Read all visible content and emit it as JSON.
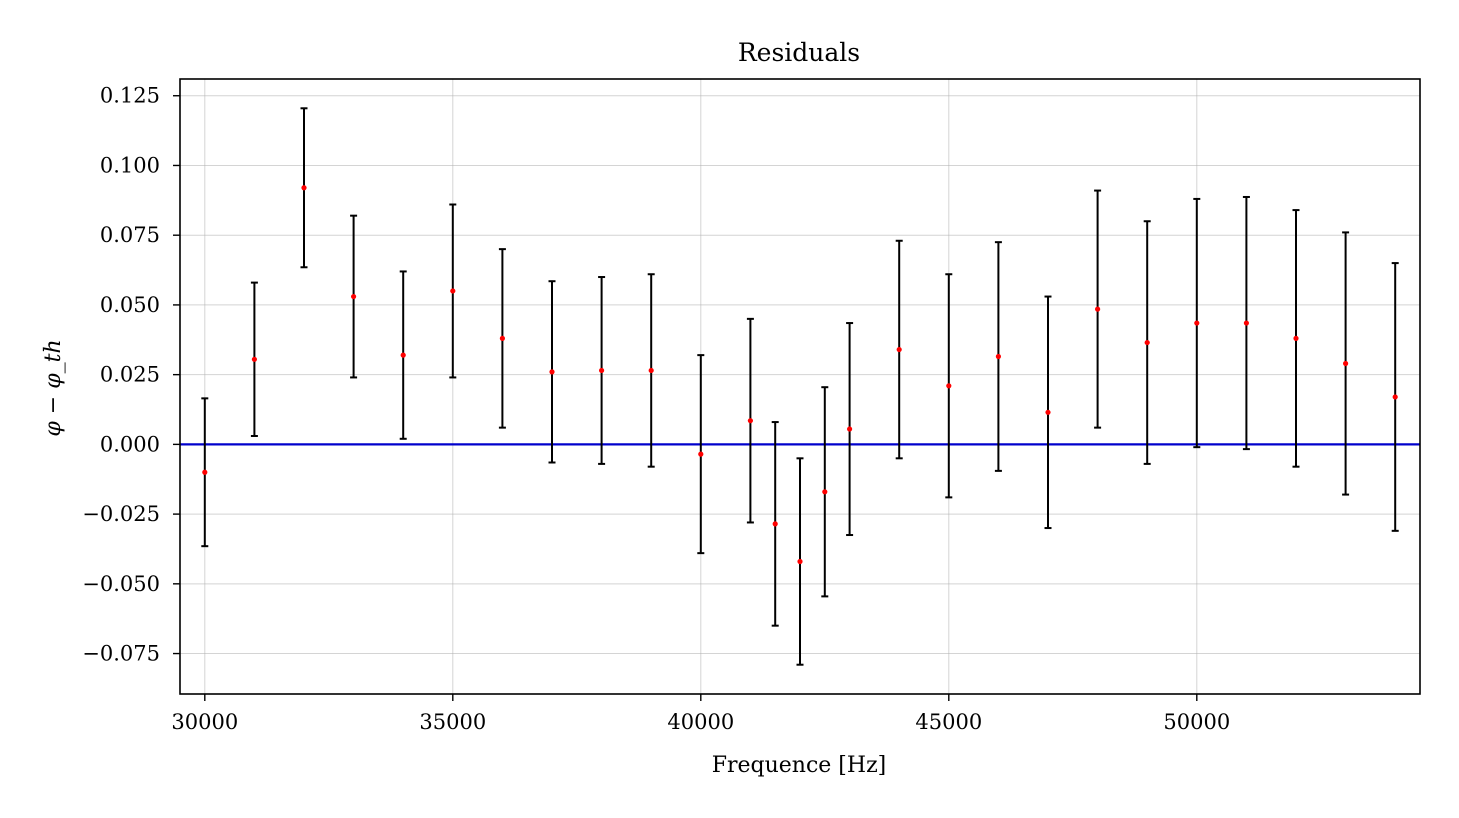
{
  "chart_data": {
    "type": "scatter",
    "title": "Residuals",
    "xlabel": "Frequence [Hz]",
    "ylabel": "φ − φ_th",
    "xlim": [
      29500,
      54500
    ],
    "ylim": [
      -0.0895,
      0.131
    ],
    "xticks": [
      30000,
      35000,
      40000,
      45000,
      50000
    ],
    "xtick_labels": [
      "30000",
      "35000",
      "40000",
      "45000",
      "50000"
    ],
    "yticks": [
      0.125,
      0.1,
      0.075,
      0.05,
      0.025,
      0.0,
      -0.025,
      -0.05,
      -0.075
    ],
    "ytick_labels": [
      "0.125",
      "0.100",
      "0.075",
      "0.050",
      "0.025",
      "0.000",
      "−0.025",
      "−0.050",
      "−0.075"
    ],
    "grid": true,
    "reference_line": {
      "y": 0.0,
      "color": "#0000cc"
    },
    "marker_color": "#ff0000",
    "errorbar_color": "#000000",
    "series": [
      {
        "points": [
          {
            "x": 30000,
            "y": -0.01,
            "err": 0.0265
          },
          {
            "x": 31000,
            "y": 0.0305,
            "err": 0.0275
          },
          {
            "x": 32000,
            "y": 0.092,
            "err": 0.0285
          },
          {
            "x": 33000,
            "y": 0.053,
            "err": 0.029
          },
          {
            "x": 34000,
            "y": 0.032,
            "err": 0.03
          },
          {
            "x": 35000,
            "y": 0.055,
            "err": 0.031
          },
          {
            "x": 36000,
            "y": 0.038,
            "err": 0.032
          },
          {
            "x": 37000,
            "y": 0.026,
            "err": 0.0325
          },
          {
            "x": 38000,
            "y": 0.0265,
            "err": 0.0335
          },
          {
            "x": 39000,
            "y": 0.0265,
            "err": 0.0345
          },
          {
            "x": 40000,
            "y": -0.0035,
            "err": 0.0355
          },
          {
            "x": 41000,
            "y": 0.0085,
            "err": 0.0365
          },
          {
            "x": 41500,
            "y": -0.0285,
            "err": 0.0365
          },
          {
            "x": 42000,
            "y": -0.042,
            "err": 0.037
          },
          {
            "x": 42500,
            "y": -0.017,
            "err": 0.0375
          },
          {
            "x": 43000,
            "y": 0.0055,
            "err": 0.038
          },
          {
            "x": 44000,
            "y": 0.034,
            "err": 0.039
          },
          {
            "x": 45000,
            "y": 0.021,
            "err": 0.04
          },
          {
            "x": 46000,
            "y": 0.0315,
            "err": 0.041
          },
          {
            "x": 47000,
            "y": 0.0115,
            "err": 0.0415
          },
          {
            "x": 48000,
            "y": 0.0485,
            "err": 0.0425
          },
          {
            "x": 49000,
            "y": 0.0365,
            "err": 0.0435
          },
          {
            "x": 50000,
            "y": 0.0435,
            "err": 0.0445
          },
          {
            "x": 51000,
            "y": 0.0435,
            "err": 0.0452
          },
          {
            "x": 52000,
            "y": 0.038,
            "err": 0.046
          },
          {
            "x": 53000,
            "y": 0.029,
            "err": 0.047
          },
          {
            "x": 54000,
            "y": 0.017,
            "err": 0.048
          }
        ]
      }
    ]
  }
}
